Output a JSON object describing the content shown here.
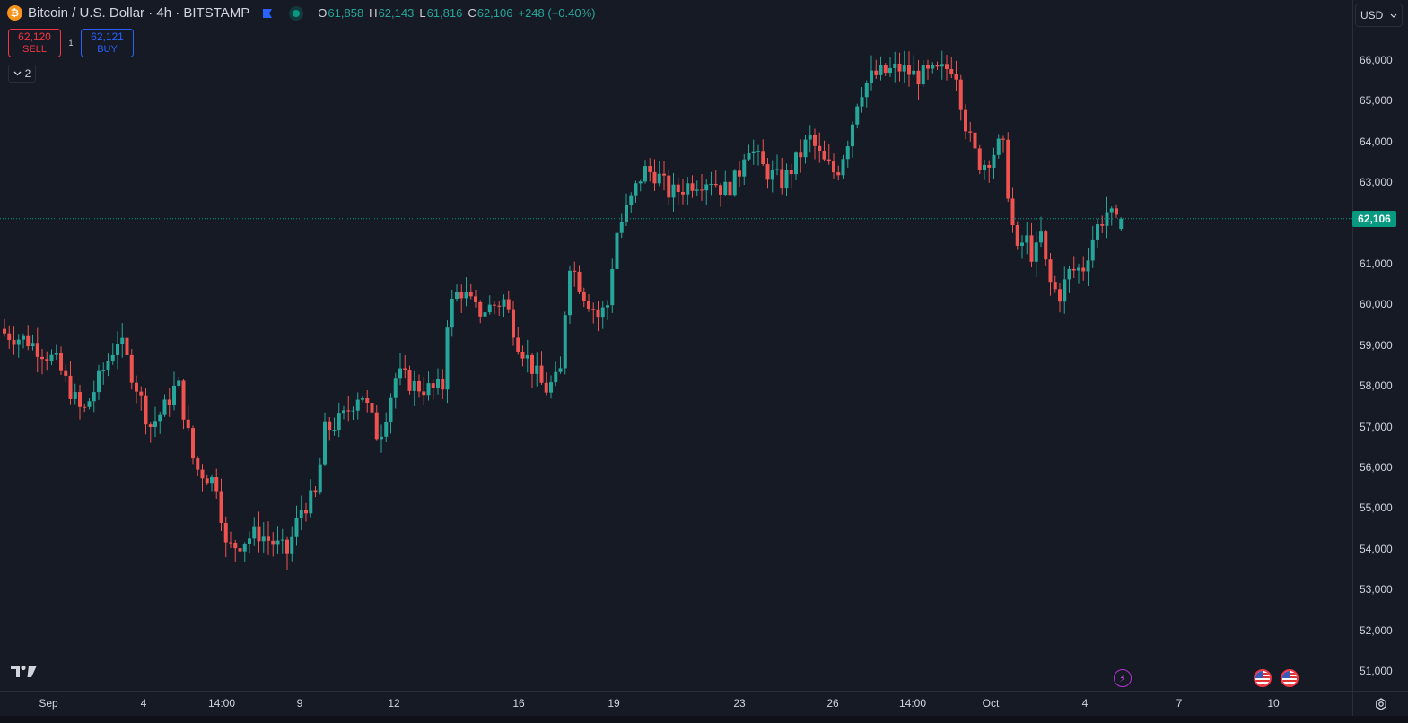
{
  "legend": {
    "title": "Bitcoin / U.S. Dollar · 4h · BITSTAMP",
    "coin_icon": "bitcoin-icon",
    "ohlc": {
      "o_label": "O",
      "o": "61,858",
      "h_label": "H",
      "h": "62,143",
      "l_label": "L",
      "l": "61,816",
      "c_label": "C",
      "c": "62,106",
      "change": "+248 (+0.40%)"
    }
  },
  "trade": {
    "sell_price": "62,120",
    "sell_label": "SELL",
    "spread": "1",
    "buy_price": "62,121",
    "buy_label": "BUY"
  },
  "indicators": {
    "count": "2"
  },
  "currency": {
    "label": "USD"
  },
  "price_scale": {
    "labels": [
      "66,000",
      "65,000",
      "64,000",
      "63,000",
      "61,000",
      "60,000",
      "59,000",
      "58,000",
      "57,000",
      "56,000",
      "55,000",
      "54,000",
      "53,000",
      "52,000",
      "51,000"
    ],
    "last_price": "62,106"
  },
  "time_scale": {
    "labels": [
      "Sep",
      "4",
      "14:00",
      "9",
      "12",
      "16",
      "19",
      "23",
      "26",
      "14:00",
      "Oct",
      "4",
      "7",
      "10"
    ]
  },
  "colors": {
    "up": "#26a69a",
    "down": "#ef5350",
    "background": "#161a25",
    "accent": "#089981"
  },
  "chart_data": {
    "type": "candlestick",
    "symbol": "Bitcoin / U.S. Dollar",
    "interval": "4h",
    "exchange": "BITSTAMP",
    "ylim": [
      50700,
      66700
    ],
    "current_price": 62106,
    "x": [
      "Sep 1",
      "Sep 4",
      "Sep 9",
      "Sep 12",
      "Sep 16",
      "Sep 19",
      "Sep 23",
      "Sep 26",
      "Oct 1",
      "Oct 4"
    ],
    "close_by_date": [
      59200,
      57000,
      54000,
      57500,
      58200,
      62000,
      62800,
      63200,
      63500,
      61000
    ],
    "grid": false
  }
}
